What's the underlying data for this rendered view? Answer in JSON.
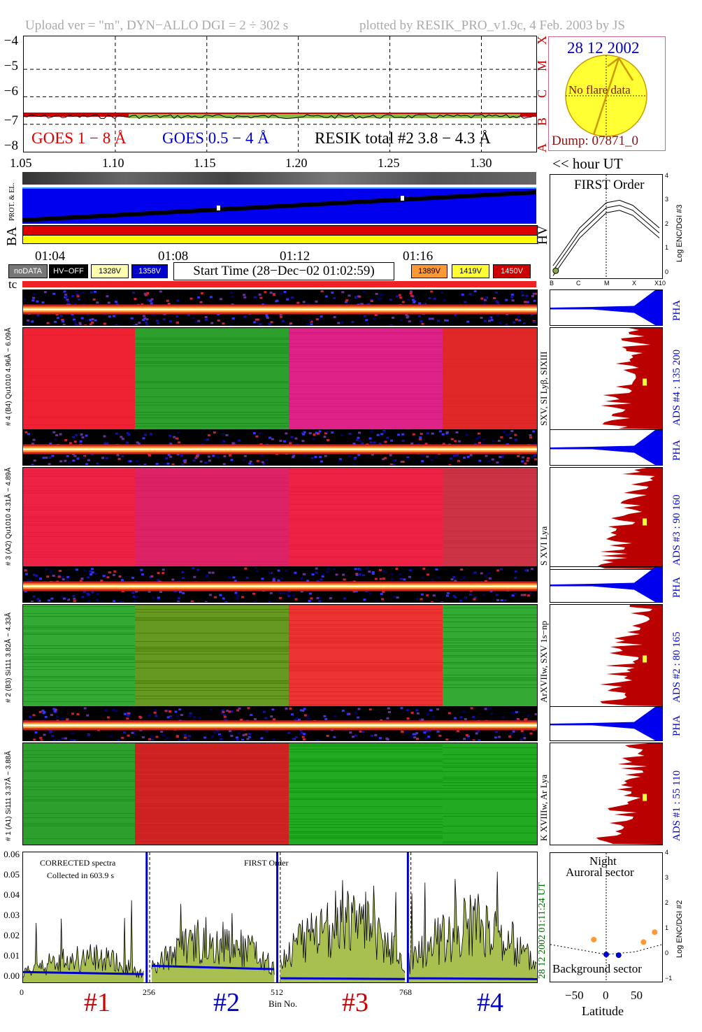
{
  "header": {
    "left": "Upload ver = \"m\", DYN−ALLO DGI =   2 ÷ 302 s",
    "right": "plotted by RESIK_PRO_v1.9c, 4 Feb. 2003 by JS"
  },
  "goes_panel": {
    "y_ticks": [
      "−4",
      "−5",
      "−6",
      "−7",
      "−8"
    ],
    "x_ticks": [
      "1.05",
      "1.10",
      "1.15",
      "1.20",
      "1.25",
      "1.30"
    ],
    "hour_label": "<< hour UT",
    "legend": {
      "goes1": "GOES 1 − 8 Å",
      "goes2": "GOES 0.5 − 4 Å",
      "resik": "RESIK total #2  3.8 − 4.3 Å"
    },
    "class_letters": [
      "X",
      "M",
      "C",
      "B",
      "A"
    ]
  },
  "sun_panel": {
    "date": "28 12 2002",
    "no_flare": "No flare data",
    "dump": "Dump: 07871_0"
  },
  "status_panel": {
    "side_label": "BA",
    "prot_label": "PROT. & EL.",
    "time_ticks": [
      "01:04",
      "01:08",
      "01:12",
      "01:16"
    ]
  },
  "legend_bar": {
    "nodata": "noDATA",
    "hvoff": "HV−OFF",
    "v1328": "1328V",
    "v1358": "1358V",
    "start_time": "Start Time (28−Dec−02 01:02:59)",
    "v1389": "1389V",
    "v1419": "1419V",
    "v1450": "1450V",
    "colors": {
      "nodata": "#777777",
      "hvoff": "#000000",
      "v1328": "#ffffb0",
      "v1358": "#0000cc",
      "v1389": "#ff9933",
      "v1419": "#ffff33",
      "v1450": "#cc0000"
    }
  },
  "hv_panel": {
    "label": "HV",
    "title": "FIRST Order",
    "x_ticks": [
      "B",
      "C",
      "M",
      "X",
      "X10"
    ],
    "y_ticks": [
      "4",
      "3",
      "2",
      "1",
      "0"
    ],
    "y_label": "Log ENC/DGI #3"
  },
  "tc_label": "tc",
  "channels": [
    {
      "strip_label": "# 4 (B4) Qu1010 4.96Å − 6.09Å",
      "ion": "SXV, SI Lyβ, SIXIII",
      "pha": "PHA",
      "ads": "ADS #4 :   135 200"
    },
    {
      "strip_label": "# 3 (A2) Qu1010  4.31Å − 4.89Å",
      "ion": "S XVI Lya",
      "pha": "PHA",
      "ads": "ADS #3 :   90 160"
    },
    {
      "strip_label": "# 2 (B3) Si111  3.82Å − 4.33Å",
      "ion": "ArXVIIw, SXV 1s−np",
      "pha": "PHA",
      "ads": "ADS #2 :   80 165"
    },
    {
      "strip_label": "# 1 (A1) Si111  3.37Å − 3.88Å",
      "ion": "K XVIIIw, Ar Lya",
      "pha": "PHA",
      "ads": "ADS #1 :   55 110"
    }
  ],
  "spectrum_panel": {
    "label1": "CORRECTED spectra",
    "label2": "Collected in    603.9 s",
    "label3": "FIRST Order",
    "y_ticks": [
      "0.06",
      "0.05",
      "0.04",
      "0.03",
      "0.02",
      "0.01",
      "0.00"
    ],
    "x_ticks": [
      "0",
      "256",
      "512",
      "768"
    ],
    "x_label": "Bin No.",
    "timestamp": "28 12 2002   01:11:24 UT",
    "channel_labels": [
      "#1",
      "#2",
      "#3",
      "#4"
    ],
    "channel_colors": [
      "#cc0000",
      "#0000cc",
      "#cc0000",
      "#0000cc"
    ]
  },
  "latitude_panel": {
    "title1": "Night",
    "title2": "Auroral sector",
    "bottom": "Background sector",
    "x_ticks": [
      "−50",
      "0",
      "50"
    ],
    "x_label": "Latitude",
    "y_ticks": [
      "4",
      "3",
      "2",
      "1",
      "0",
      "−1"
    ],
    "y_label": "Log ENC/DGI #2"
  },
  "chart_data": [
    {
      "type": "line",
      "title": "",
      "xlabel": "",
      "ylabel": "",
      "xlim": [
        1.05,
        1.33
      ],
      "ylim": [
        -8,
        -3.8
      ],
      "series": [
        {
          "name": "GOES 1 − 8 Å",
          "color": "#cc0000",
          "x": [
            1.05,
            1.33
          ],
          "y": [
            -6.65,
            -6.65
          ]
        },
        {
          "name": "GOES 0.5 − 4 Å",
          "color": "#0000cc",
          "x": [],
          "y": []
        },
        {
          "name": "RESIK total #2  3.8 − 4.3 Å",
          "color": "#000000",
          "x": [
            1.05,
            1.33
          ],
          "y": [
            -6.72,
            -6.72
          ]
        }
      ]
    },
    {
      "type": "line",
      "title": "FIRST Order",
      "x_categories": [
        "B",
        "C",
        "M",
        "X",
        "X10"
      ],
      "ylabel": "Log ENC/DGI #3",
      "ylim": [
        0,
        4
      ],
      "series": [
        {
          "x": [
            0,
            1,
            2,
            2.5,
            3,
            4
          ],
          "y": [
            0.5,
            2.0,
            3.0,
            3.1,
            2.9,
            2.0
          ]
        },
        {
          "x": [
            0,
            1,
            2,
            2.5,
            3,
            4
          ],
          "y": [
            0.3,
            1.8,
            2.8,
            2.9,
            2.7,
            1.8
          ]
        },
        {
          "x": [
            0,
            1,
            2,
            2.5,
            3,
            4
          ],
          "y": [
            0.1,
            1.6,
            2.6,
            2.7,
            2.5,
            1.6
          ]
        }
      ],
      "points": [
        {
          "x": 0.1,
          "y": 0.3
        }
      ]
    },
    {
      "type": "area",
      "title": "",
      "xlabel": "Bin No.",
      "ylabel": "",
      "xlim": [
        0,
        1023
      ],
      "ylim": [
        0,
        0.063
      ],
      "x_ticks": [
        0,
        256,
        512,
        768
      ],
      "series": [
        {
          "name": "",
          "color": "#000000",
          "fill": "#a8c050",
          "channel_means": [
            0.008,
            0.014,
            0.019,
            0.018
          ],
          "channel_peaks": [
            0.045,
            0.04,
            0.051,
            0.055
          ]
        },
        {
          "name": "",
          "color": "#0000cc",
          "channel_baselines": [
            0.005,
            0.008,
            0.002,
            0.002
          ]
        }
      ]
    },
    {
      "type": "scatter",
      "title": "",
      "xlabel": "Latitude",
      "ylabel": "Log ENC/DGI #2",
      "xlim": [
        -90,
        90
      ],
      "ylim": [
        -1,
        4.2
      ],
      "series": [
        {
          "name": "",
          "color": "#ff9933",
          "x": [
            -20,
            60,
            78
          ],
          "y": [
            0.7,
            0.6,
            1.0
          ]
        },
        {
          "name": "",
          "color": "#0000cc",
          "x": [
            0,
            20
          ],
          "y": [
            0.1,
            0.07
          ]
        }
      ],
      "curve": {
        "x": [
          -90,
          -45,
          0,
          45,
          90
        ],
        "y": [
          0.5,
          0.3,
          0.1,
          0.2,
          0.5
        ]
      }
    }
  ]
}
